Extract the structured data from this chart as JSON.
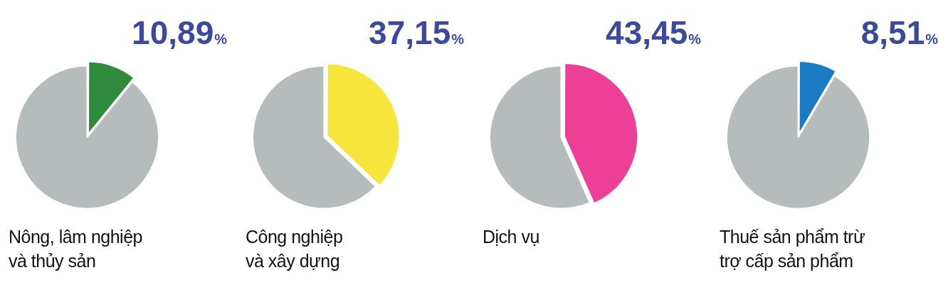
{
  "chart_data": [
    {
      "type": "pie",
      "title": "Nông, lâm nghiệp\nvà thủy sản",
      "categories": [
        null,
        null
      ],
      "values": [
        10.89,
        89.11
      ],
      "colors": [
        "#2e8b3e",
        "#b5bcbb"
      ],
      "value_labels": [
        "10,89%",
        null
      ]
    },
    {
      "type": "pie",
      "title": "Công nghiệp\nvà xây dựng",
      "categories": [
        null,
        null
      ],
      "values": [
        37.15,
        62.85
      ],
      "colors": [
        "#f7e53b",
        "#b5bcbb"
      ],
      "value_labels": [
        "37,15%",
        null
      ]
    },
    {
      "type": "pie",
      "title": "Dịch vụ",
      "categories": [
        null,
        null
      ],
      "values": [
        43.45,
        56.55
      ],
      "colors": [
        "#ee3f97",
        "#b5bcbb"
      ],
      "value_labels": [
        "43,45%",
        null
      ]
    },
    {
      "type": "pie",
      "title": "Thuế sản phẩm trừ\ntrợ cấp sản phẩm",
      "categories": [
        null,
        null
      ],
      "values": [
        8.51,
        91.49
      ],
      "colors": [
        "#1a7bc4",
        "#b5bcbb"
      ],
      "value_labels": [
        "8,51%",
        null
      ]
    }
  ]
}
